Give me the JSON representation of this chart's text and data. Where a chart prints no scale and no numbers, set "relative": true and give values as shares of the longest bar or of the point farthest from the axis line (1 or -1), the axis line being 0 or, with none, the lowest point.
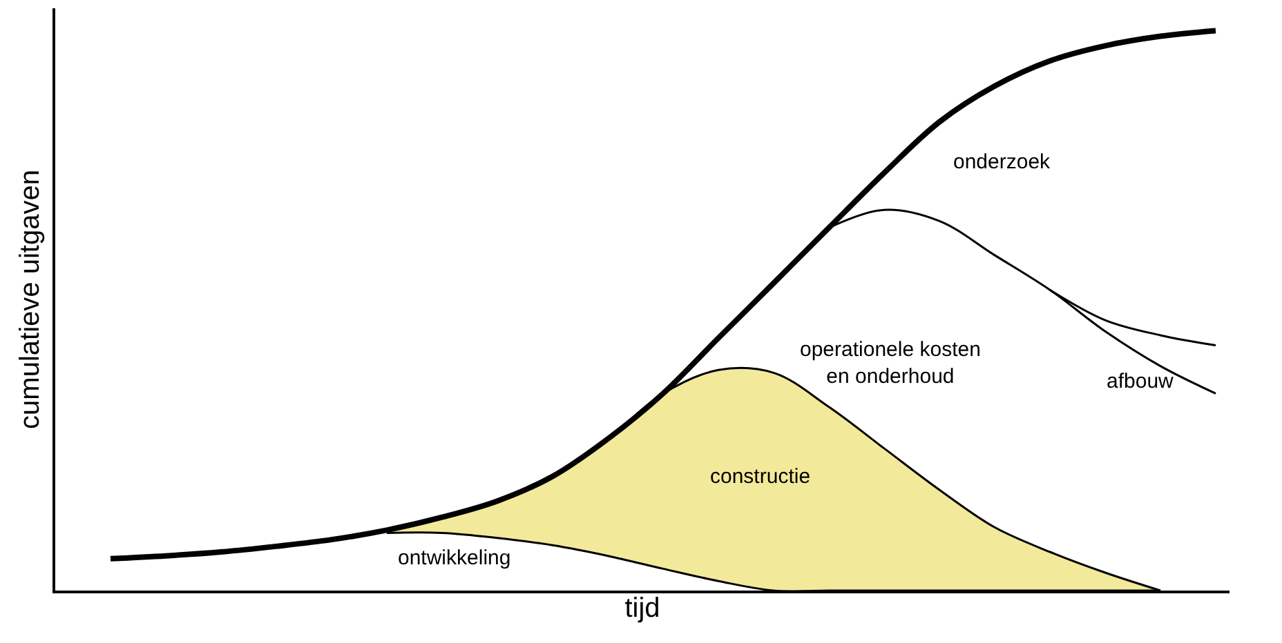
{
  "chart_data": {
    "type": "line",
    "relative": true,
    "xlabel": "tijd",
    "ylabel": "cumulatieve uitgaven",
    "tick_labels": false,
    "categories": [
      null,
      null,
      null,
      null,
      null,
      null,
      null,
      null,
      null,
      null,
      null,
      null,
      null,
      null,
      null,
      null,
      null,
      null,
      null,
      null,
      null
    ],
    "series": [
      {
        "color": "#000000",
        "values": [
          null,
          null,
          null,
          null,
          null,
          0.103,
          0.103,
          0.094,
          0.081,
          0.062,
          0.039,
          0.017,
          0,
          0,
          0,
          0,
          0,
          0,
          0,
          0,
          null
        ]
      },
      {
        "type": "area",
        "color": "#f3e99b",
        "values": [
          null,
          null,
          null,
          null,
          null,
          0.108,
          0.131,
          0.16,
          0.204,
          0.271,
          0.352,
          0.394,
          0.389,
          0.328,
          0.254,
          0.18,
          0.113,
          0.069,
          0.032,
          0,
          null
        ]
      },
      {
        "color": "#000000",
        "values": [
          null,
          null,
          null,
          null,
          null,
          null,
          null,
          null,
          null,
          null,
          null,
          null,
          null,
          0.648,
          0.68,
          0.66,
          0.599,
          0.537,
          0.463,
          0.401,
          0.352
        ]
      },
      {
        "color": "#000000",
        "values": [
          null,
          null,
          null,
          null,
          null,
          null,
          null,
          null,
          null,
          null,
          null,
          null,
          null,
          null,
          null,
          null,
          null,
          0.537,
          0.483,
          0.456,
          0.438
        ]
      },
      {
        "color": "#000000",
        "values": [
          0.057,
          0.062,
          0.069,
          0.079,
          0.091,
          0.108,
          0.131,
          0.16,
          0.204,
          0.271,
          0.352,
          0.451,
          0.549,
          0.648,
          0.746,
          0.837,
          0.901,
          0.946,
          0.973,
          0.99,
          1.0
        ]
      }
    ],
    "annotations": [
      "onderzoek",
      "operationele kosten\nen onderhoud",
      "afbouw",
      "constructie",
      "ontwikkeling"
    ]
  }
}
